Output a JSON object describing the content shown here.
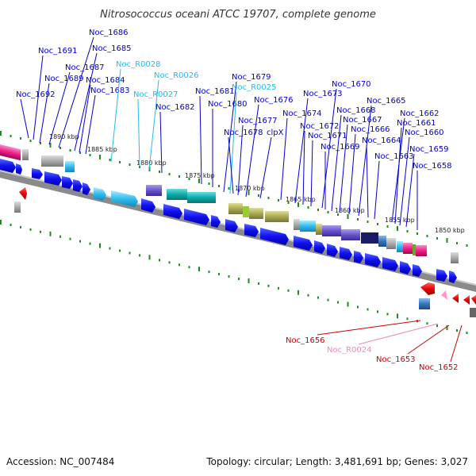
{
  "title": "Nitrosococcus oceani ATCC 19707, complete genome",
  "footer": {
    "accession": "Accession: NC_007484",
    "summary": "Topology: circular; Length: 3,481,691 bp; Genes: 3,027"
  },
  "scale": {
    "ticks": [
      "1890 kbp",
      "1885 kbp",
      "1880 kbp",
      "1875 kbp",
      "1870 kbp",
      "1865 kbp",
      "1860 kbp",
      "1855 kbp",
      "1850 kbp"
    ]
  },
  "colors": {
    "forward": "#1a1aff",
    "rna": "#33ccff",
    "reverse_label": "#cc0000",
    "pseudo": "#ff99cc",
    "backbone": "#888888",
    "tick": "#1f8a1f"
  },
  "labels_top": [
    {
      "text": "Noc_1692",
      "kind": "gene"
    },
    {
      "text": "Noc_1691",
      "kind": "gene"
    },
    {
      "text": "Noc_1689",
      "kind": "gene"
    },
    {
      "text": "Noc_1687",
      "kind": "gene"
    },
    {
      "text": "Noc_1686",
      "kind": "gene"
    },
    {
      "text": "Noc_1685",
      "kind": "gene"
    },
    {
      "text": "Noc_1684",
      "kind": "gene"
    },
    {
      "text": "Noc_1683",
      "kind": "gene"
    },
    {
      "text": "Noc_R0028",
      "kind": "rna"
    },
    {
      "text": "Noc_R0027",
      "kind": "rna"
    },
    {
      "text": "Noc_R0026",
      "kind": "rna"
    },
    {
      "text": "Noc_1682",
      "kind": "gene"
    },
    {
      "text": "Noc_1681",
      "kind": "gene"
    },
    {
      "text": "Noc_1680",
      "kind": "gene"
    },
    {
      "text": "Noc_1679",
      "kind": "gene"
    },
    {
      "text": "Noc_R0025",
      "kind": "rna"
    },
    {
      "text": "Noc_1676",
      "kind": "gene"
    },
    {
      "text": "Noc_1677",
      "kind": "gene"
    },
    {
      "text": "Noc_1678",
      "kind": "gene"
    },
    {
      "text": "clpX",
      "kind": "gene"
    },
    {
      "text": "Noc_1674",
      "kind": "gene"
    },
    {
      "text": "Noc_1673",
      "kind": "gene"
    },
    {
      "text": "Noc_1672",
      "kind": "gene"
    },
    {
      "text": "Noc_1671",
      "kind": "gene"
    },
    {
      "text": "Noc_1670",
      "kind": "gene"
    },
    {
      "text": "Noc_1669",
      "kind": "gene"
    },
    {
      "text": "Noc_1668",
      "kind": "gene"
    },
    {
      "text": "Noc_1667",
      "kind": "gene"
    },
    {
      "text": "Noc_1666",
      "kind": "gene"
    },
    {
      "text": "Noc_1665",
      "kind": "gene"
    },
    {
      "text": "Noc_1664",
      "kind": "gene"
    },
    {
      "text": "Noc_1663",
      "kind": "gene"
    },
    {
      "text": "Noc_1662",
      "kind": "gene"
    },
    {
      "text": "Noc_1661",
      "kind": "gene"
    },
    {
      "text": "Noc_1660",
      "kind": "gene"
    },
    {
      "text": "Noc_1659",
      "kind": "gene"
    },
    {
      "text": "Noc_1658",
      "kind": "gene"
    }
  ],
  "labels_bottom": [
    {
      "text": "Noc_1656",
      "kind": "reverse"
    },
    {
      "text": "Noc_R0024",
      "kind": "pseudo"
    },
    {
      "text": "Noc_1653",
      "kind": "reverse"
    },
    {
      "text": "Noc_1652",
      "kind": "reverse"
    }
  ]
}
